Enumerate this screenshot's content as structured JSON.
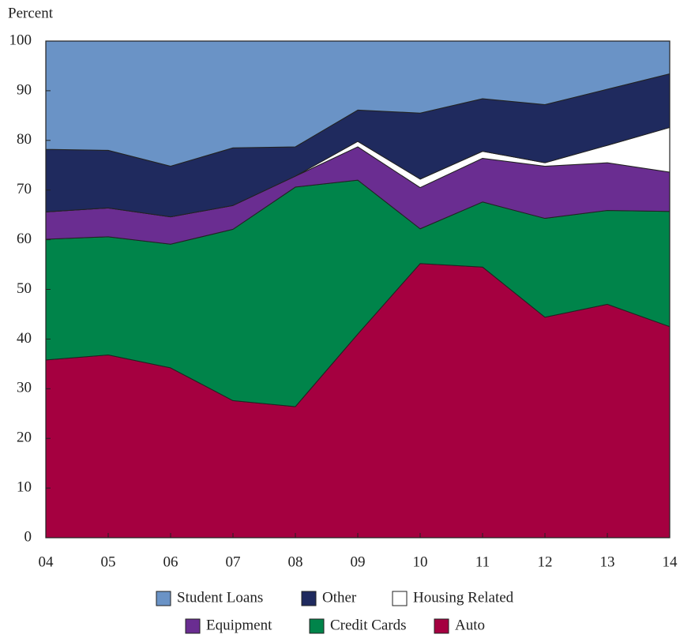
{
  "chart_data": {
    "type": "stacked_area",
    "y_label": "Percent",
    "categories": [
      "04",
      "05",
      "06",
      "07",
      "08",
      "09",
      "10",
      "11",
      "12",
      "13",
      "14"
    ],
    "ylim": [
      0,
      100
    ],
    "yticks": [
      0,
      10,
      20,
      30,
      40,
      50,
      60,
      70,
      80,
      90,
      100
    ],
    "series": [
      {
        "name": "Student Loans",
        "color": "#6a93c6",
        "values": [
          21.8,
          22.0,
          25.2,
          21.5,
          21.3,
          13.9,
          14.5,
          11.6,
          12.8,
          9.7,
          6.6
        ]
      },
      {
        "name": "Other",
        "color": "#1f2a5e",
        "values": [
          12.6,
          11.6,
          10.2,
          11.6,
          5.9,
          6.3,
          13.3,
          10.6,
          11.7,
          11.3,
          10.8
        ]
      },
      {
        "name": "Housing Related",
        "color": "#ffffff",
        "values": [
          0,
          0,
          0,
          0,
          0,
          1.1,
          1.7,
          1.4,
          0.7,
          3.5,
          9.0
        ]
      },
      {
        "name": "Equipment",
        "color": "#6a2d91",
        "values": [
          5.5,
          5.8,
          5.5,
          4.8,
          2.2,
          6.7,
          8.3,
          8.8,
          10.5,
          9.6,
          7.9
        ]
      },
      {
        "name": "Credit Cards",
        "color": "#00844a",
        "values": [
          24.3,
          23.8,
          24.9,
          34.5,
          44.2,
          31.0,
          7.0,
          13.1,
          19.9,
          18.9,
          23.2
        ]
      },
      {
        "name": "Auto",
        "color": "#a50040",
        "values": [
          35.8,
          36.8,
          34.2,
          27.6,
          26.4,
          41.0,
          55.2,
          54.5,
          44.4,
          47.0,
          42.5
        ]
      }
    ]
  }
}
